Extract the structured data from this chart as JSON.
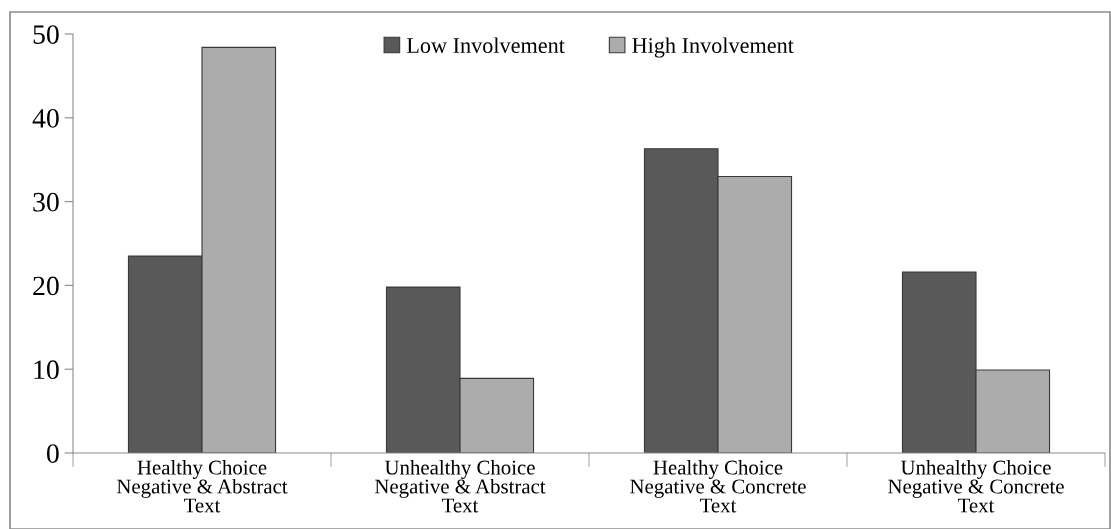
{
  "chart_data": {
    "type": "bar",
    "categories": [
      "Healthy Choice\nNegative & Abstract\nText",
      "Unhealthy Choice\nNegative & Abstract\nText",
      "Healthy Choice\nNegative & Concrete\nText",
      "Unhealthy Choice\nNegative & Concrete\nText"
    ],
    "series": [
      {
        "name": "Low Involvement",
        "color": "#595959",
        "values": [
          23.5,
          19.8,
          36.3,
          21.6
        ]
      },
      {
        "name": "High Involvement",
        "color": "#acacac",
        "values": [
          48.4,
          8.9,
          33.0,
          9.9
        ]
      }
    ],
    "ylim": [
      0,
      50
    ],
    "yticks": [
      0,
      10,
      20,
      30,
      40,
      50
    ],
    "grid": false,
    "legend": "top"
  }
}
